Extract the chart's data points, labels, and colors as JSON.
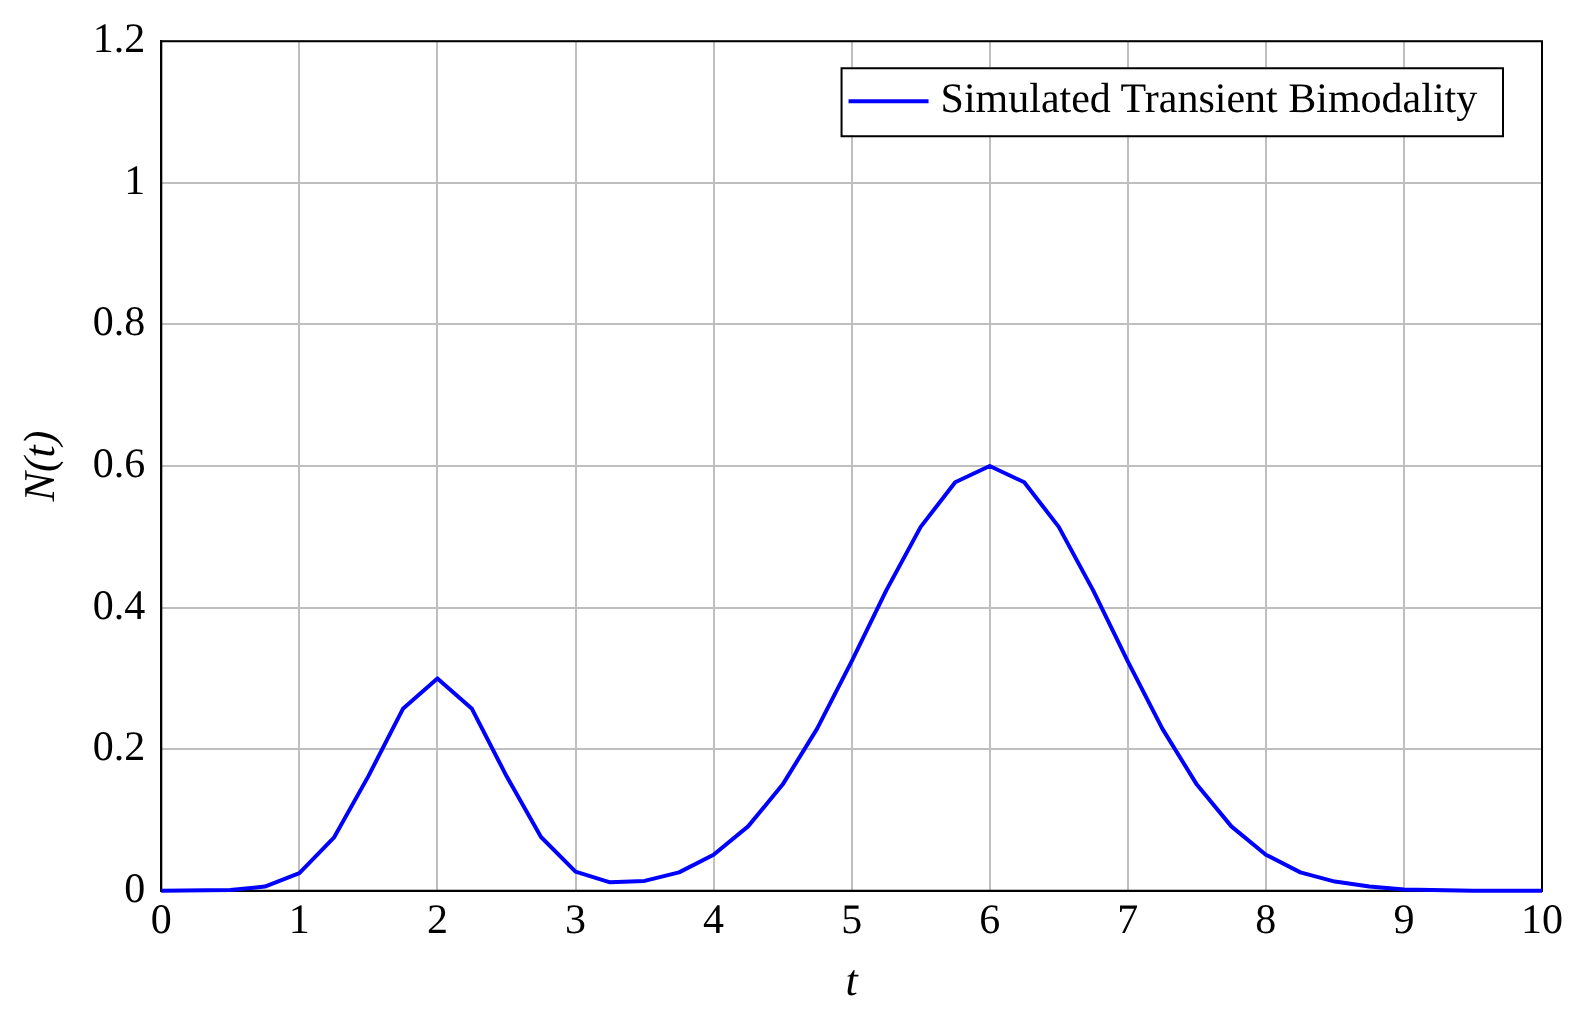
{
  "chart_data": {
    "type": "line",
    "xlabel": "t",
    "ylabel": "N(t)",
    "x": [
      0,
      0.5,
      0.75,
      1,
      1.25,
      1.5,
      1.75,
      2,
      2.25,
      2.5,
      2.75,
      3,
      3.25,
      3.5,
      3.75,
      4,
      4.25,
      4.5,
      4.75,
      5,
      5.25,
      5.5,
      5.75,
      6,
      6.25,
      6.5,
      6.75,
      7,
      7.25,
      7.5,
      7.75,
      8,
      8.25,
      8.5,
      8.75,
      9,
      9.5,
      10
    ],
    "series": [
      {
        "name": "Simulated Transient Bimodality",
        "color": "#0000ff",
        "values": [
          0,
          0.001,
          0.006,
          0.025,
          0.075,
          0.162,
          0.257,
          0.3,
          0.257,
          0.162,
          0.076,
          0.027,
          0.012,
          0.014,
          0.026,
          0.051,
          0.091,
          0.15,
          0.229,
          0.324,
          0.424,
          0.514,
          0.577,
          0.6,
          0.577,
          0.514,
          0.424,
          0.324,
          0.229,
          0.15,
          0.091,
          0.051,
          0.026,
          0.013,
          0.006,
          0.002,
          0,
          0
        ]
      }
    ],
    "xlim": [
      0,
      10
    ],
    "xticks": [
      0,
      1,
      2,
      3,
      4,
      5,
      6,
      7,
      8,
      9,
      10
    ],
    "ylim": [
      0,
      1.2
    ],
    "yticks": [
      0,
      0.2,
      0.4,
      0.6,
      0.8,
      1,
      1.2
    ],
    "grid": true,
    "legend": "top right",
    "marker": "none",
    "line_style": "solid"
  }
}
